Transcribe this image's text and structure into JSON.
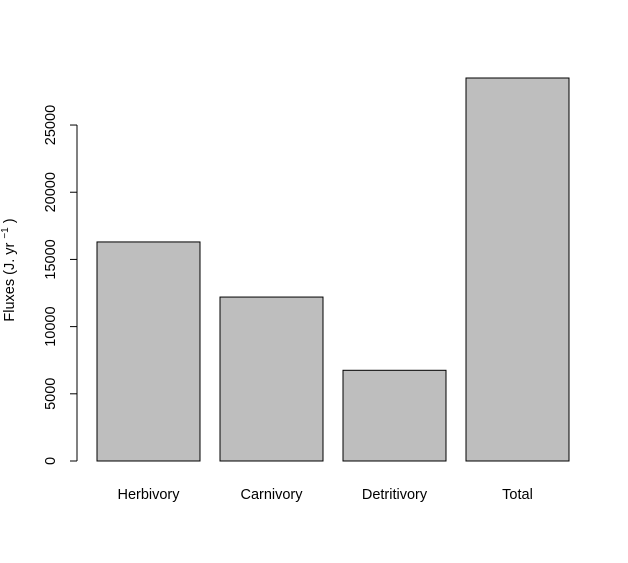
{
  "chart_data": {
    "type": "bar",
    "title": "",
    "xlabel": "",
    "ylabel": {
      "prefix": "Fluxes (J. yr",
      "superscript": "−1",
      "suffix": " )"
    },
    "categories": [
      "Herbivory",
      "Carnivory",
      "Detritivory",
      "Total"
    ],
    "values": [
      16300,
      12200,
      6750,
      28500
    ],
    "ylim": [
      0,
      28500
    ],
    "yticks": [
      0,
      5000,
      10000,
      15000,
      20000,
      25000
    ],
    "ytick_labels": [
      "0",
      "5000",
      "10000",
      "15000",
      "20000",
      "25000"
    ],
    "grid": false,
    "legend": "none",
    "colors": {
      "bar_fill": "#bebebe",
      "bar_stroke": "#000000"
    }
  }
}
